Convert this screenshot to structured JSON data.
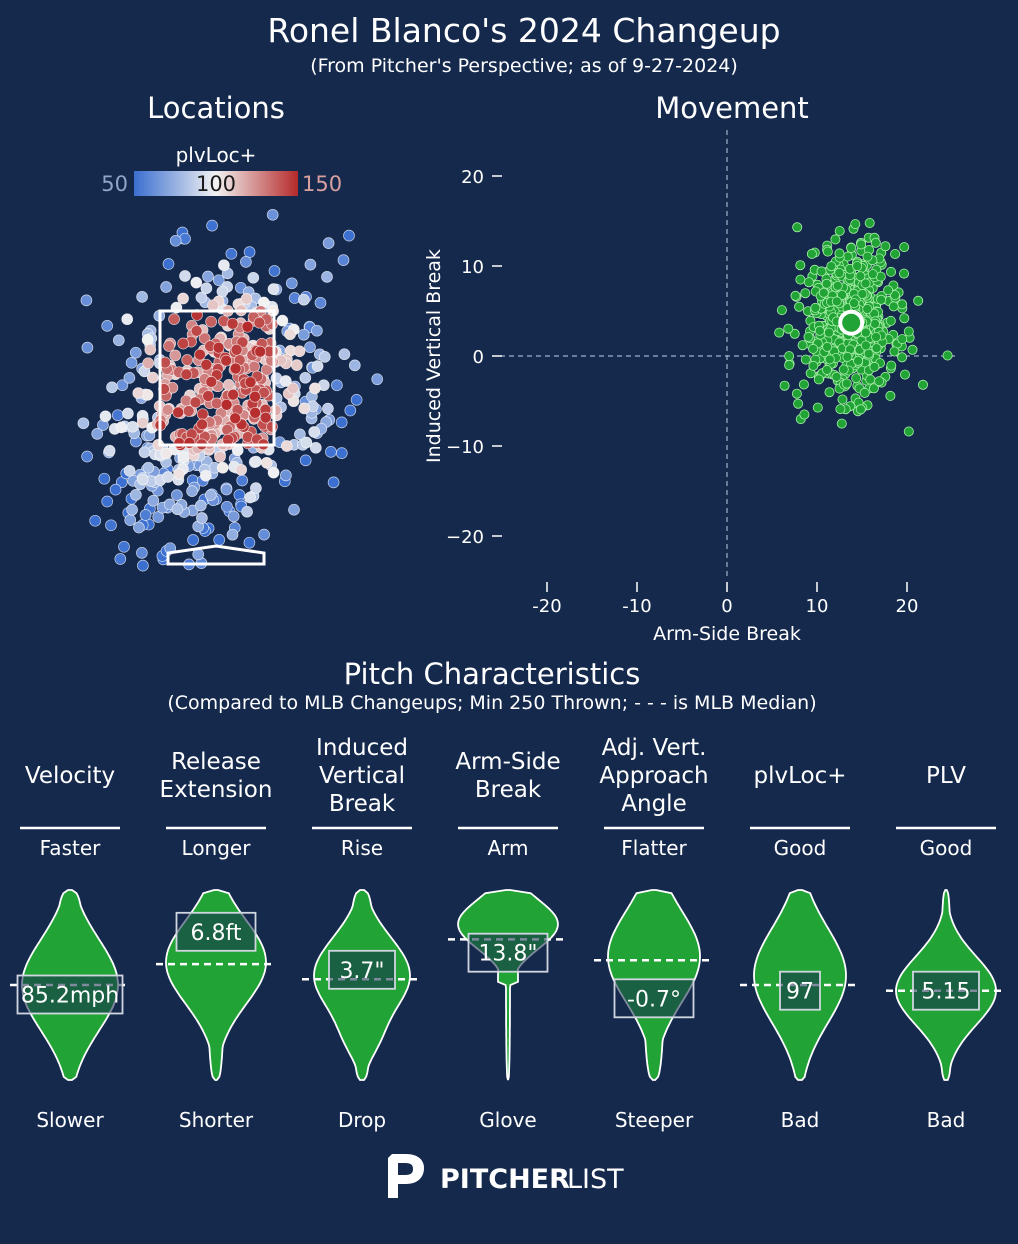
{
  "colors": {
    "background": "#15294d",
    "green": "#21a336",
    "green_stroke": "#a8f0a8",
    "cmap_low": "#3b6fd0",
    "cmap_mid": "#f2f2f2",
    "cmap_high": "#b52a2a",
    "text": "#ffffff",
    "dim_text": "#8fa6c8"
  },
  "header": {
    "title": "Ronel Blanco's 2024 Changeup",
    "subtitle": "(From Pitcher's Perspective; as of 9-27-2024)"
  },
  "locations": {
    "title": "Locations",
    "colorbar": {
      "label": "plvLoc+",
      "min_label": "50",
      "mid_label": "100",
      "max_label": "150"
    }
  },
  "chart_data": [
    {
      "type": "scatter",
      "title": "Movement",
      "xlabel": "Arm-Side Break",
      "ylabel": "Induced Vertical Break",
      "xlim": [
        -25,
        25
      ],
      "ylim": [
        -26,
        25
      ],
      "x_ticks": [
        "-20",
        "-10",
        "0",
        "10",
        "20"
      ],
      "y_ticks": [
        "20",
        "10",
        "0",
        "−10",
        "−20"
      ],
      "grid": false,
      "reference_lines": "dashed lines at x=0 and y=0",
      "average": {
        "x": 13.8,
        "y": 3.7
      },
      "points": [
        [
          7.8,
          14.3
        ],
        [
          11.2,
          11.6
        ],
        [
          12.5,
          11.4
        ],
        [
          13.8,
          12.0
        ],
        [
          14.9,
          12.4
        ],
        [
          17.6,
          12.2
        ],
        [
          6.1,
          5.1
        ],
        [
          5.8,
          2.6
        ],
        [
          6.4,
          -3.3
        ],
        [
          8.6,
          -6.5
        ],
        [
          7.9,
          -5.3
        ],
        [
          12.6,
          -5.9
        ],
        [
          18.2,
          3.9
        ],
        [
          19.7,
          4.2
        ],
        [
          18.6,
          0.5
        ],
        [
          16.9,
          -2.8
        ],
        [
          15.3,
          -4.1
        ],
        [
          10.2,
          -2.6
        ],
        [
          9.1,
          8.2
        ],
        [
          10.5,
          9.4
        ],
        [
          16.2,
          9.1
        ],
        [
          17.9,
          7.3
        ],
        [
          8.4,
          1.2
        ],
        [
          9.6,
          -1.1
        ]
      ]
    },
    {
      "type": "violin",
      "title": "Pitch Characteristics",
      "subtitle": "(Compared to MLB Changeups; Min 250 Thrown; - - - is MLB Median)",
      "metrics": [
        {
          "title": [
            "Velocity"
          ],
          "top_label": "Faster",
          "bottom_label": "Slower",
          "value_label": "85.2mph",
          "percentile": 0.45,
          "median_percentile": 0.5
        },
        {
          "title": [
            "Release",
            "Extension"
          ],
          "top_label": "Longer",
          "bottom_label": "Shorter",
          "value_label": "6.8ft",
          "percentile": 0.78,
          "median_percentile": 0.61
        },
        {
          "title": [
            "Induced",
            "Vertical",
            "Break"
          ],
          "top_label": "Rise",
          "bottom_label": "Drop",
          "value_label": "3.7\"",
          "percentile": 0.58,
          "median_percentile": 0.53
        },
        {
          "title": [
            "Arm-Side",
            "Break"
          ],
          "top_label": "Arm",
          "bottom_label": "Glove",
          "value_label": "13.8\"",
          "percentile": 0.67,
          "median_percentile": 0.74
        },
        {
          "title": [
            "Adj. Vert.",
            "Approach",
            "Angle"
          ],
          "top_label": "Flatter",
          "bottom_label": "Steeper",
          "value_label": "-0.7°",
          "percentile": 0.43,
          "median_percentile": 0.63
        },
        {
          "title": [
            "plvLoc+"
          ],
          "top_label": "Good",
          "bottom_label": "Bad",
          "value_label": "97",
          "percentile": 0.47,
          "median_percentile": 0.5
        },
        {
          "title": [
            "PLV"
          ],
          "top_label": "Good",
          "bottom_label": "Bad",
          "value_label": "5.15",
          "percentile": 0.47,
          "median_percentile": 0.47
        }
      ]
    }
  ],
  "logo": {
    "text_bold": "PITCHER",
    "text_light": "LIST"
  }
}
